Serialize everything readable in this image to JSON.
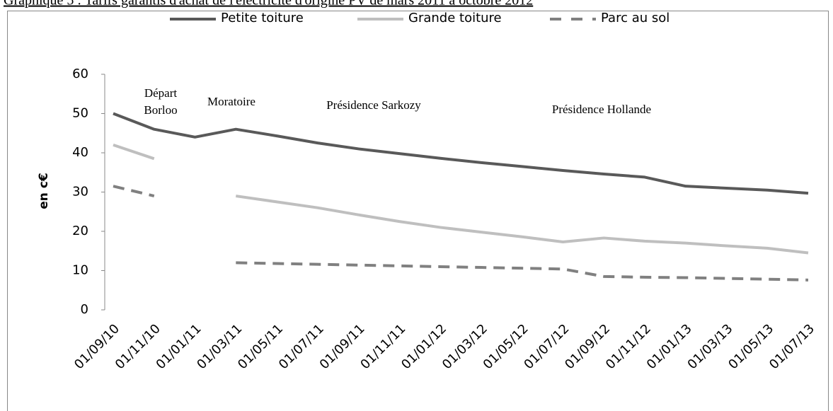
{
  "chart_data": {
    "type": "line",
    "title": "Graphique 5 : Tarifs garantis d'achat de l'électricité d'origine PV de mars 2011 à octobre 2012",
    "y_label": "en c€",
    "categories": [
      "01/09/10",
      "01/11/10",
      "01/01/11",
      "01/03/11",
      "01/05/11",
      "01/07/11",
      "01/09/11",
      "01/11/11",
      "01/01/12",
      "01/03/12",
      "01/05/12",
      "01/07/12",
      "01/09/12",
      "01/11/12",
      "01/01/13",
      "01/03/13",
      "01/05/13",
      "01/07/13"
    ],
    "series": [
      {
        "name": "Petite toiture",
        "color": "#595959",
        "dashed": false,
        "values": [
          50,
          46,
          44,
          46,
          44.3,
          42.5,
          41,
          39.8,
          38.6,
          37.5,
          36.5,
          35.5,
          34.6,
          33.8,
          31.5,
          31,
          30.5,
          29.7
        ]
      },
      {
        "name": "Grande toiture",
        "color": "#bfbfbf",
        "dashed": false,
        "values": [
          42,
          38.5,
          null,
          29,
          27.5,
          26,
          24.2,
          22.5,
          21,
          19.8,
          18.6,
          17.3,
          18.3,
          17.5,
          17,
          16.3,
          15.7,
          14.5
        ]
      },
      {
        "name": "Parc au sol",
        "color": "#808080",
        "dashed": true,
        "values": [
          31.5,
          29,
          null,
          12,
          11.8,
          11.6,
          11.4,
          11.2,
          11,
          10.8,
          10.6,
          10.4,
          8.5,
          8.3,
          8.2,
          8,
          7.8,
          7.6
        ]
      }
    ],
    "annotations": [
      "Départ\nBorloo",
      "Moratoire",
      "Présidence Sarkozy",
      "Présidence Hollande"
    ],
    "ylim": [
      0,
      60
    ],
    "yticks": [
      0,
      10,
      20,
      30,
      40,
      50,
      60
    ],
    "grid": false,
    "legend": "top"
  }
}
